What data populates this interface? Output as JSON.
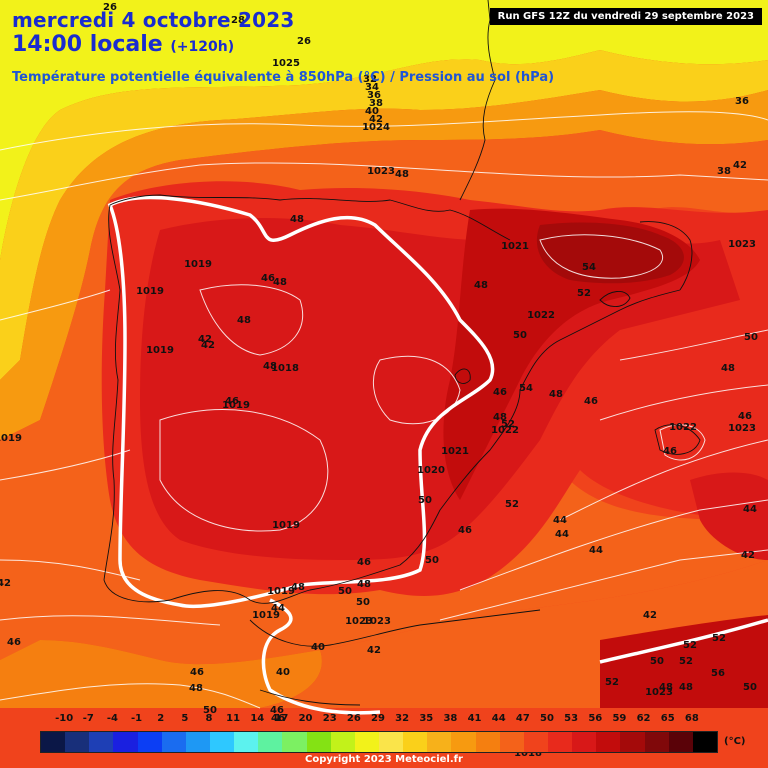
{
  "header": {
    "date": "mercredi 4 octobre 2023",
    "time": "14:00 locale",
    "lead": "(+120h)",
    "parameter": "Température potentielle équivalente à 850hPa (°C) / Pression au sol (hPa)",
    "run": "Run GFS 12Z du vendredi 29 septembre 2023"
  },
  "legend": {
    "unit": "(°C)",
    "ticks": [
      "-10",
      "-7",
      "-4",
      "-1",
      "2",
      "5",
      "8",
      "11",
      "14",
      "17",
      "20",
      "23",
      "26",
      "29",
      "32",
      "35",
      "38",
      "41",
      "44",
      "47",
      "50",
      "53",
      "56",
      "59",
      "62",
      "65",
      "68"
    ],
    "colors": [
      "#0b1747",
      "#182f7a",
      "#1e3fb5",
      "#1a20e0",
      "#0c3ef4",
      "#1a6cf0",
      "#1e98f4",
      "#2ec8ff",
      "#5cf2ee",
      "#5ef2a0",
      "#7cf062",
      "#84e214",
      "#c2f21a",
      "#f2f21a",
      "#fae44a",
      "#fad01a",
      "#f7b11a",
      "#f79a10",
      "#f57f10",
      "#f4621a",
      "#f0431c",
      "#e82a1c",
      "#d81818",
      "#c20c0c",
      "#a40a0a",
      "#80080a",
      "#5a0208",
      "#000000"
    ]
  },
  "copyright": "Copyright 2023 Meteociel.fr",
  "map_labels": {
    "theta": [
      "26",
      "28",
      "26",
      "32",
      "34",
      "36",
      "38",
      "40",
      "42",
      "36",
      "38",
      "42",
      "48",
      "48",
      "54",
      "52",
      "46",
      "48",
      "48",
      "42",
      "42",
      "48",
      "46",
      "50",
      "54",
      "48",
      "46",
      "52",
      "52",
      "48",
      "48",
      "46",
      "44",
      "50",
      "42",
      "42",
      "46",
      "44",
      "52",
      "50",
      "52",
      "52",
      "50",
      "50",
      "46",
      "46",
      "50",
      "50",
      "44",
      "40",
      "42",
      "48",
      "50",
      "46",
      "40",
      "46",
      "44",
      "46",
      "44",
      "42",
      "46",
      "48",
      "52",
      "48",
      "48",
      "50",
      "56",
      "48",
      "46",
      "48"
    ],
    "pressure": [
      "1025",
      "1024",
      "1023",
      "1021",
      "1022",
      "1022",
      "1021",
      "1020",
      "1019",
      "1019",
      "1019",
      "1018",
      "1019",
      "1019",
      "1019",
      "1019",
      "1023",
      "1023",
      "1023",
      "1023",
      "1022",
      "1019",
      "1018",
      "1023"
    ]
  }
}
